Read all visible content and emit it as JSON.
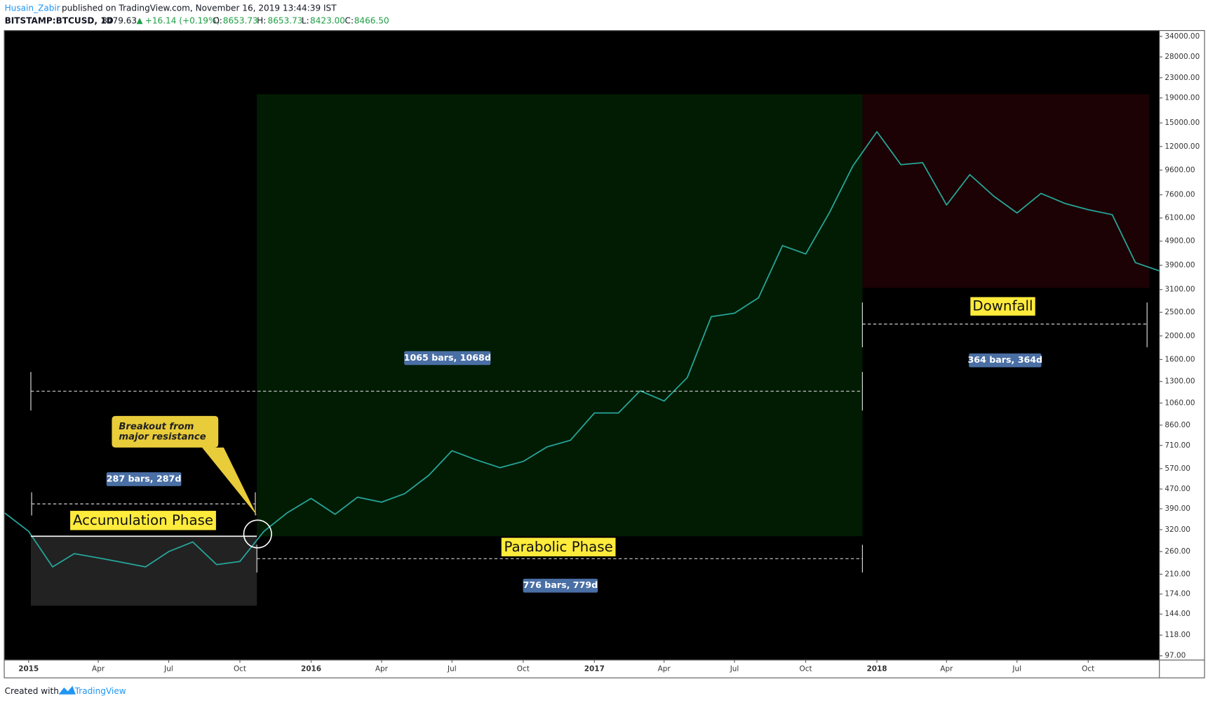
{
  "header": {
    "author": "Husain_Zabir",
    "published": "published on TradingView.com, November 16, 2019 13:44:39 IST"
  },
  "symbol": {
    "name": "BITSTAMP:BTCUSD, 1D",
    "last": "8479.63",
    "change": "+16.14 (+0.19%)",
    "open_label": "O:",
    "open": "8653.73",
    "high_label": "H:",
    "high": "8653.73",
    "low_label": "L:",
    "low": "8423.00",
    "close_label": "C:",
    "close": "8466.50"
  },
  "chart_data": {
    "type": "line",
    "log_scale": true,
    "grid": false,
    "color": "#26a69a",
    "x": [
      "2014-12",
      "2015-01",
      "2015-02",
      "2015-03",
      "2015-04",
      "2015-05",
      "2015-06",
      "2015-07",
      "2015-08",
      "2015-09",
      "2015-10",
      "2015-11",
      "2015-12",
      "2016-01",
      "2016-02",
      "2016-03",
      "2016-04",
      "2016-05",
      "2016-06",
      "2016-07",
      "2016-08",
      "2016-09",
      "2016-10",
      "2016-11",
      "2016-12",
      "2017-01",
      "2017-02",
      "2017-03",
      "2017-04",
      "2017-05",
      "2017-06",
      "2017-07",
      "2017-08",
      "2017-09",
      "2017-10",
      "2017-11",
      "2017-12",
      "2018-01",
      "2018-02",
      "2018-03",
      "2018-04",
      "2018-05",
      "2018-06",
      "2018-07",
      "2018-08",
      "2018-09",
      "2018-10",
      "2018-11",
      "2018-12",
      "2019-01"
    ],
    "values": [
      375,
      315,
      225,
      255,
      245,
      235,
      225,
      260,
      285,
      230,
      237,
      315,
      375,
      430,
      370,
      435,
      415,
      450,
      535,
      675,
      620,
      575,
      610,
      700,
      745,
      965,
      965,
      1190,
      1080,
      1350,
      2400,
      2480,
      2870,
      4700,
      4340,
      6450,
      10000,
      13800,
      10100,
      10300,
      6900,
      9200,
      7500,
      6400,
      7700,
      7000,
      6600,
      6300,
      4000,
      3700
    ],
    "xlim": [
      "2014-12",
      "2019-01"
    ],
    "xticks": [
      {
        "value": "2015-01",
        "label": "2015"
      },
      {
        "value": "2015-04",
        "label": "Apr"
      },
      {
        "value": "2015-07",
        "label": "Jul"
      },
      {
        "value": "2015-10",
        "label": "Oct"
      },
      {
        "value": "2016-01",
        "label": "2016"
      },
      {
        "value": "2016-04",
        "label": "Apr"
      },
      {
        "value": "2016-07",
        "label": "Jul"
      },
      {
        "value": "2016-10",
        "label": "Oct"
      },
      {
        "value": "2017-01",
        "label": "2017"
      },
      {
        "value": "2017-04",
        "label": "Apr"
      },
      {
        "value": "2017-07",
        "label": "Jul"
      },
      {
        "value": "2017-10",
        "label": "Oct"
      },
      {
        "value": "2018-01",
        "label": "2018"
      },
      {
        "value": "2018-04",
        "label": "Apr"
      },
      {
        "value": "2018-07",
        "label": "Jul"
      },
      {
        "value": "2018-10",
        "label": "Oct"
      }
    ],
    "ylim": [
      93.5,
      35800
    ],
    "yticks": [
      {
        "value": 34000,
        "label": "34000.00"
      },
      {
        "value": 28000,
        "label": "28000.00"
      },
      {
        "value": 23000,
        "label": "23000.00"
      },
      {
        "value": 19000,
        "label": "19000.00"
      },
      {
        "value": 15000,
        "label": "15000.00"
      },
      {
        "value": 12000,
        "label": "12000.00"
      },
      {
        "value": 9600,
        "label": "9600.00"
      },
      {
        "value": 7600,
        "label": "7600.00"
      },
      {
        "value": 6100,
        "label": "6100.00"
      },
      {
        "value": 4900,
        "label": "4900.00"
      },
      {
        "value": 3900,
        "label": "3900.00"
      },
      {
        "value": 3100,
        "label": "3100.00"
      },
      {
        "value": 2500,
        "label": "2500.00"
      },
      {
        "value": 2000,
        "label": "2000.00"
      },
      {
        "value": 1600,
        "label": "1600.00"
      },
      {
        "value": 1300,
        "label": "1300.00"
      },
      {
        "value": 1060,
        "label": "1060.00"
      },
      {
        "value": 860,
        "label": "860.00"
      },
      {
        "value": 710,
        "label": "710.00"
      },
      {
        "value": 570,
        "label": "570.00"
      },
      {
        "value": 470,
        "label": "470.00"
      },
      {
        "value": 390,
        "label": "390.00"
      },
      {
        "value": 320,
        "label": "320.00"
      },
      {
        "value": 260,
        "label": "260.00"
      },
      {
        "value": 210,
        "label": "210.00"
      },
      {
        "value": 174,
        "label": "174.00"
      },
      {
        "value": 144,
        "label": "144.00"
      },
      {
        "value": 118,
        "label": "118.00"
      },
      {
        "value": 97,
        "label": "97.00"
      }
    ],
    "annotations": {
      "accumulation": "Accumulation Phase",
      "parabolic": "Parabolic Phase",
      "downfall": "Downfall",
      "breakout": [
        "Breakout from",
        "major resistance"
      ],
      "range_accumulation": "287 bars, 287d",
      "range_full": "1065 bars, 1068d",
      "range_parabolic": "776 bars, 779d",
      "range_downfall": "364 bars, 364d"
    }
  },
  "footer": {
    "created": "Created with",
    "brand": "TradingView"
  }
}
